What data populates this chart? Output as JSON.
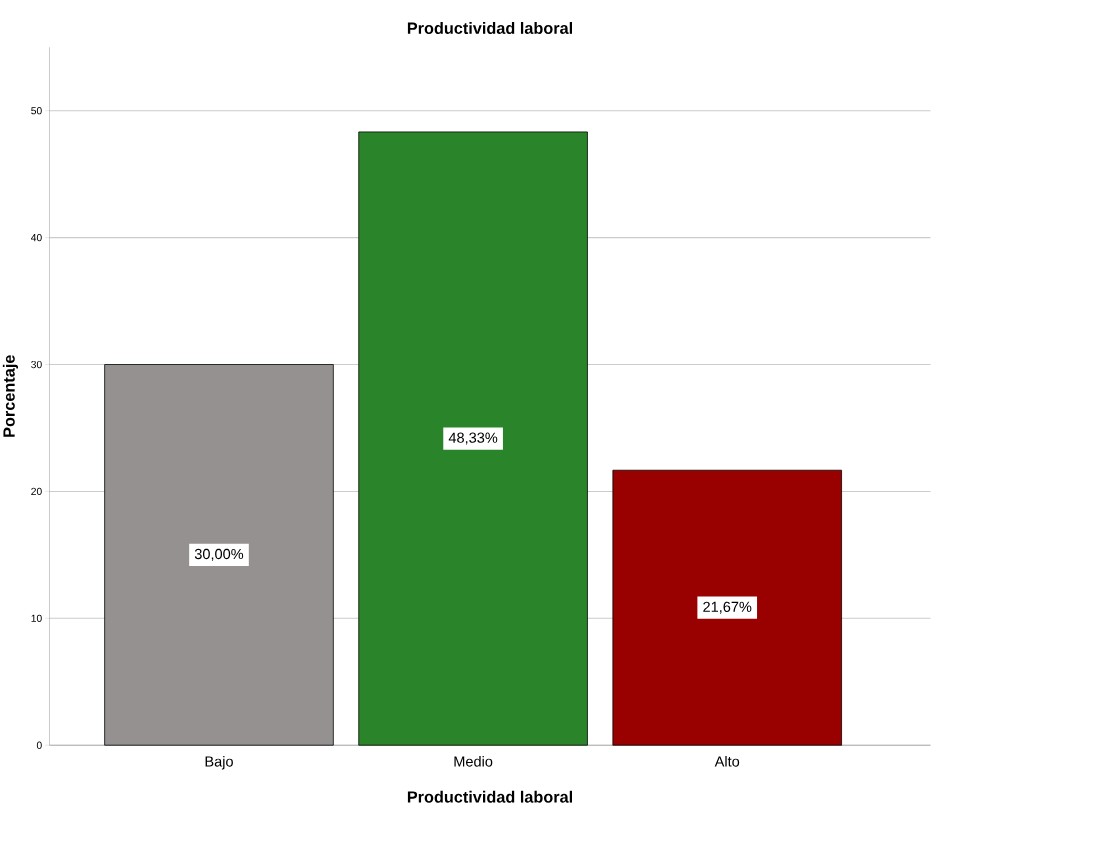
{
  "chart_data": {
    "type": "bar",
    "title": "Productividad laboral",
    "xlabel": "Productividad laboral",
    "ylabel": "Porcentaje",
    "categories": [
      "Bajo",
      "Medio",
      "Alto"
    ],
    "values": [
      30.0,
      48.33,
      21.67
    ],
    "value_labels": [
      "30,00%",
      "48,33%",
      "21,67%"
    ],
    "colors": [
      "#959190",
      "#2a852a",
      "#990000"
    ],
    "ylim": [
      0,
      55
    ],
    "yticks": [
      0,
      10,
      20,
      30,
      40,
      50
    ],
    "grid": "y"
  }
}
